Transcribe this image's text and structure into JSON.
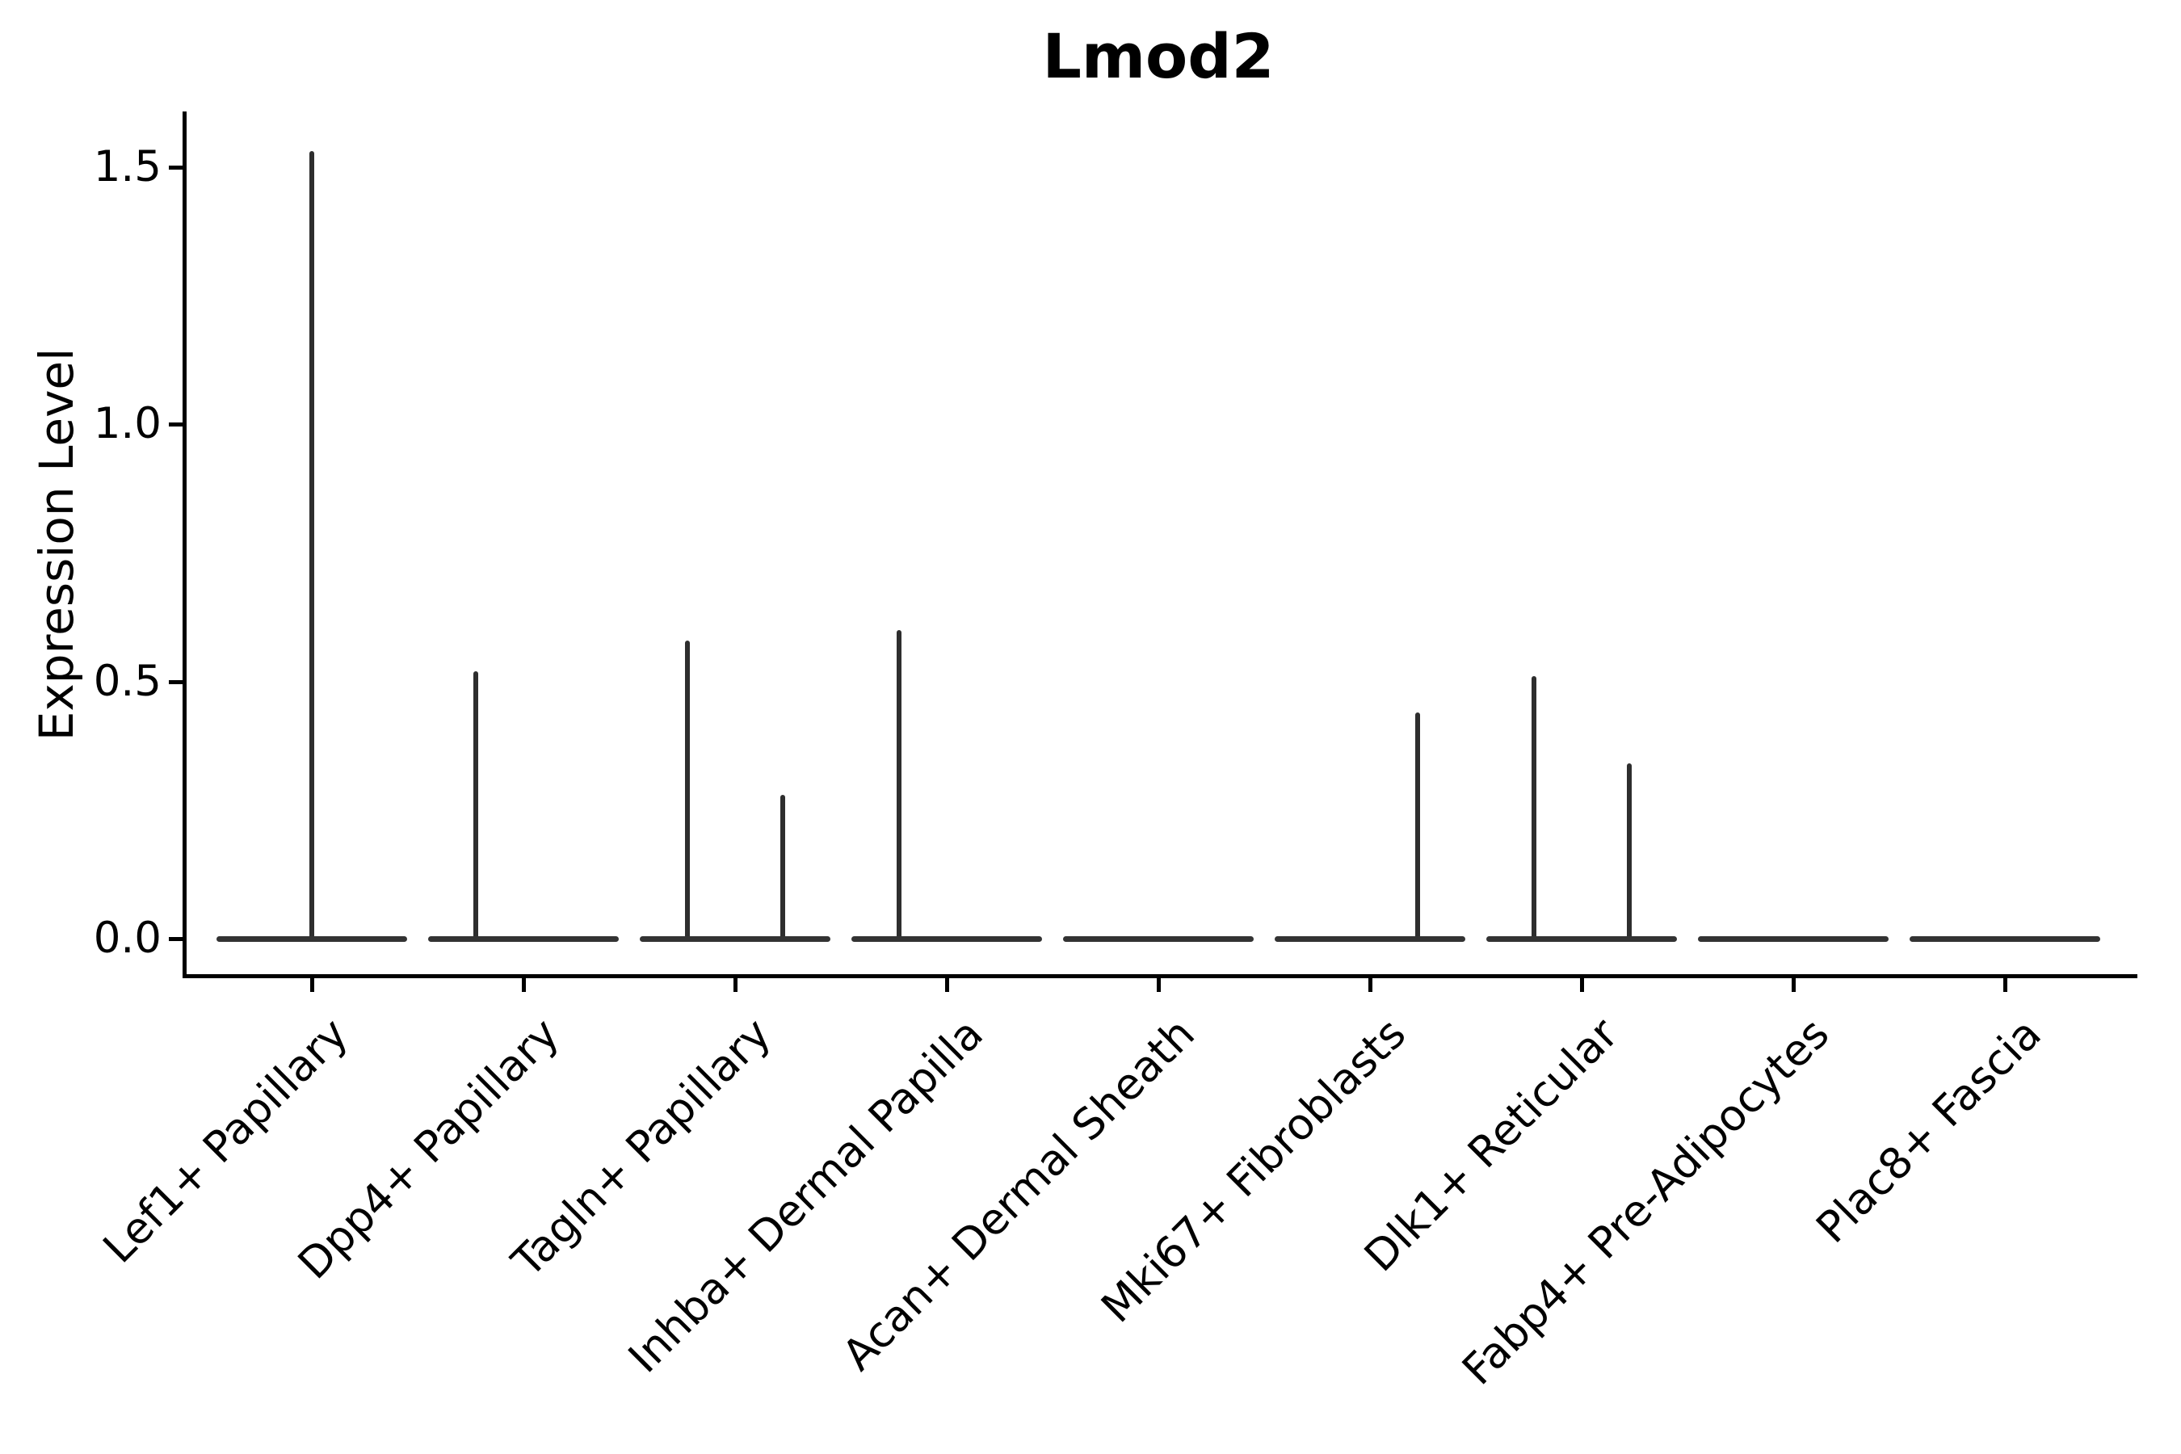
{
  "chart_data": {
    "type": "violin",
    "title": "Lmod2",
    "xlabel": "",
    "ylabel": "Expression Level",
    "yticks": [
      "0.0",
      "0.5",
      "1.0",
      "1.5"
    ],
    "ytick_values": [
      0,
      0.5,
      1.0,
      1.5
    ],
    "ylim": [
      -0.07,
      1.6
    ],
    "grid": false,
    "legend": "none",
    "x_tick_rotation": 45,
    "violin_body_width": 0.9,
    "baseline_value": 0,
    "stroke_color": "#333333",
    "spike_color": "#2e2e2e",
    "axis_color": "#000000",
    "background_color": "#ffffff",
    "categories": [
      {
        "label": "Lef1+ Papillary",
        "violins": [
          {
            "offset": 0,
            "max": 1.53
          }
        ]
      },
      {
        "label": "Dpp4+ Papillary",
        "violins": [
          {
            "offset": -0.225,
            "max": 0.52
          }
        ]
      },
      {
        "label": "Tagln+ Papillary",
        "violins": [
          {
            "offset": -0.225,
            "max": 0.58
          },
          {
            "offset": 0.225,
            "max": 0.28
          }
        ]
      },
      {
        "label": "Inhba+ Dermal Papilla",
        "violins": [
          {
            "offset": -0.225,
            "max": 0.6
          }
        ]
      },
      {
        "label": "Acan+ Dermal Sheath",
        "violins": []
      },
      {
        "label": "Mki67+ Fibroblasts",
        "violins": [
          {
            "offset": 0.225,
            "max": 0.44
          }
        ]
      },
      {
        "label": "Dlk1+ Reticular",
        "violins": [
          {
            "offset": -0.225,
            "max": 0.51
          },
          {
            "offset": 0.225,
            "max": 0.34
          }
        ]
      },
      {
        "label": "Fabp4+ Pre-Adipocytes",
        "violins": []
      },
      {
        "label": "Plac8+ Fascia",
        "violins": []
      }
    ]
  }
}
